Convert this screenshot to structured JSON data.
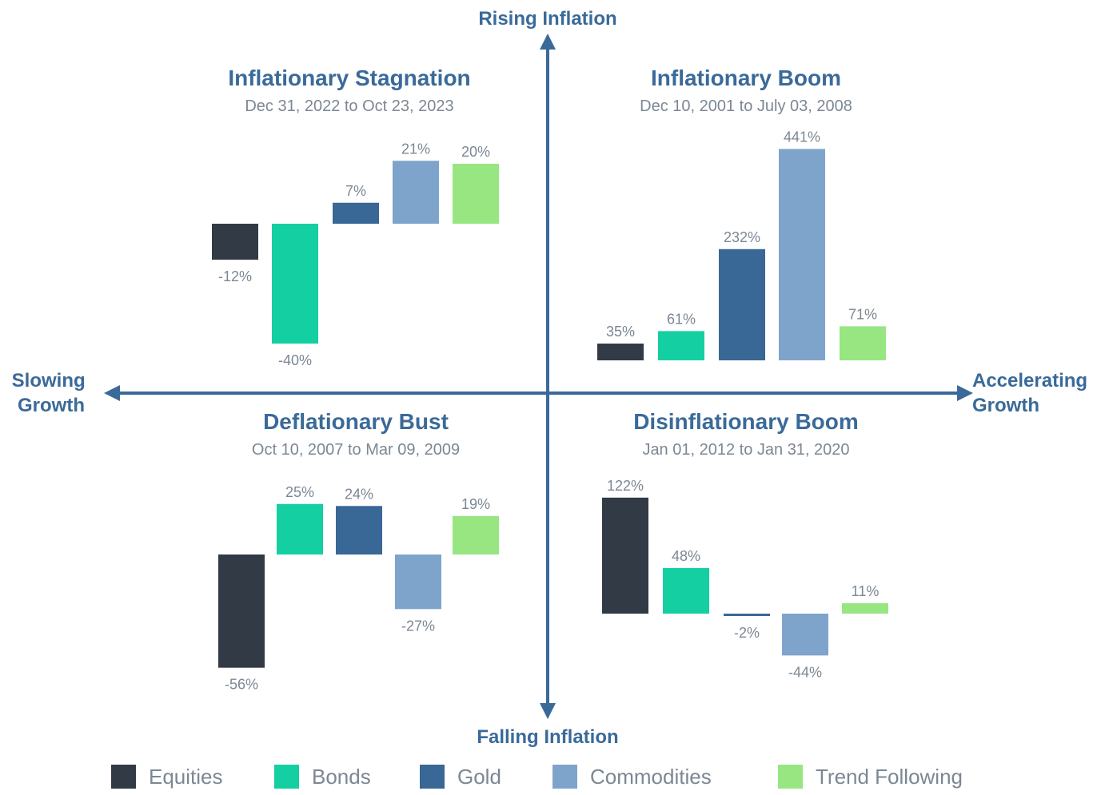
{
  "axes": {
    "top": "Rising Inflation",
    "bottom": "Falling Inflation",
    "left": [
      "Slowing",
      "Growth"
    ],
    "right": [
      "Accelerating",
      "Growth"
    ]
  },
  "colors": {
    "axis": "#3a6a99",
    "Equities": "#323a46",
    "Bonds": "#14cfa1",
    "Gold": "#396796",
    "Commodities": "#7fa4cc",
    "Trend Following": "#97e682"
  },
  "legend": [
    "Equities",
    "Bonds",
    "Gold",
    "Commodities",
    "Trend Following"
  ],
  "chart_data": [
    {
      "type": "bar",
      "title": "Inflationary Stagnation",
      "subtitle": "Dec 31, 2022 to Oct 23, 2023",
      "categories": [
        "Equities",
        "Bonds",
        "Gold",
        "Commodities",
        "Trend Following"
      ],
      "values": [
        -12,
        -40,
        7,
        21,
        20
      ],
      "labels": [
        "-12%",
        "-40%",
        "7%",
        "21%",
        "20%"
      ],
      "unit": "%"
    },
    {
      "type": "bar",
      "title": "Inflationary Boom",
      "subtitle": "Dec 10, 2001 to July 03, 2008",
      "categories": [
        "Equities",
        "Bonds",
        "Gold",
        "Commodities",
        "Trend Following"
      ],
      "values": [
        35,
        61,
        232,
        441,
        71
      ],
      "labels": [
        "35%",
        "61%",
        "232%",
        "441%",
        "71%"
      ],
      "unit": "%"
    },
    {
      "type": "bar",
      "title": "Deflationary Bust",
      "subtitle": "Oct 10, 2007 to Mar 09, 2009",
      "categories": [
        "Equities",
        "Bonds",
        "Gold",
        "Commodities",
        "Trend Following"
      ],
      "values": [
        -56,
        25,
        24,
        -27,
        19
      ],
      "labels": [
        "-56%",
        "25%",
        "24%",
        "-27%",
        "19%"
      ],
      "unit": "%"
    },
    {
      "type": "bar",
      "title": "Disinflationary Boom",
      "subtitle": "Jan 01, 2012 to Jan 31, 2020",
      "categories": [
        "Equities",
        "Bonds",
        "Gold",
        "Commodities",
        "Trend Following"
      ],
      "values": [
        122,
        48,
        -2,
        -44,
        11
      ],
      "labels": [
        "122%",
        "48%",
        "-2%",
        "-44%",
        "11%"
      ],
      "unit": "%"
    }
  ]
}
